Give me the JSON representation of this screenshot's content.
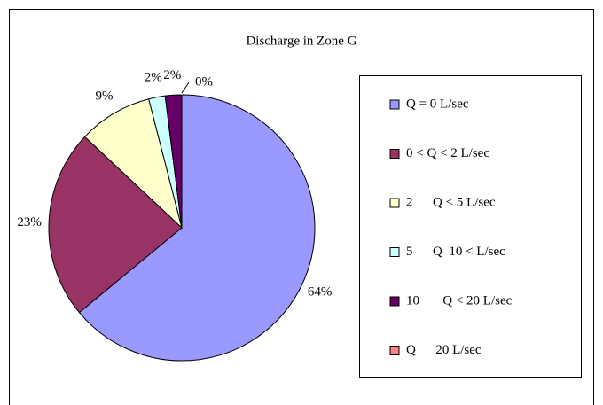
{
  "chart_data": {
    "type": "pie",
    "title": "Discharge in Zone G",
    "categories": [
      "Q = 0 L/sec",
      "0 < Q < 2 L/sec",
      "2      Q < 5 L/sec",
      "5      Q  10 < L/sec",
      "10       Q < 20 L/sec",
      "Q      20 L/sec"
    ],
    "values": [
      64,
      23,
      9,
      2,
      2,
      0
    ],
    "value_labels": [
      "64%",
      "23%",
      "9%",
      "2%",
      "2%",
      "0%"
    ],
    "colors": [
      "#9999ff",
      "#993366",
      "#ffffcc",
      "#ccffff",
      "#660066",
      "#ff8080"
    ],
    "legend": "right"
  }
}
